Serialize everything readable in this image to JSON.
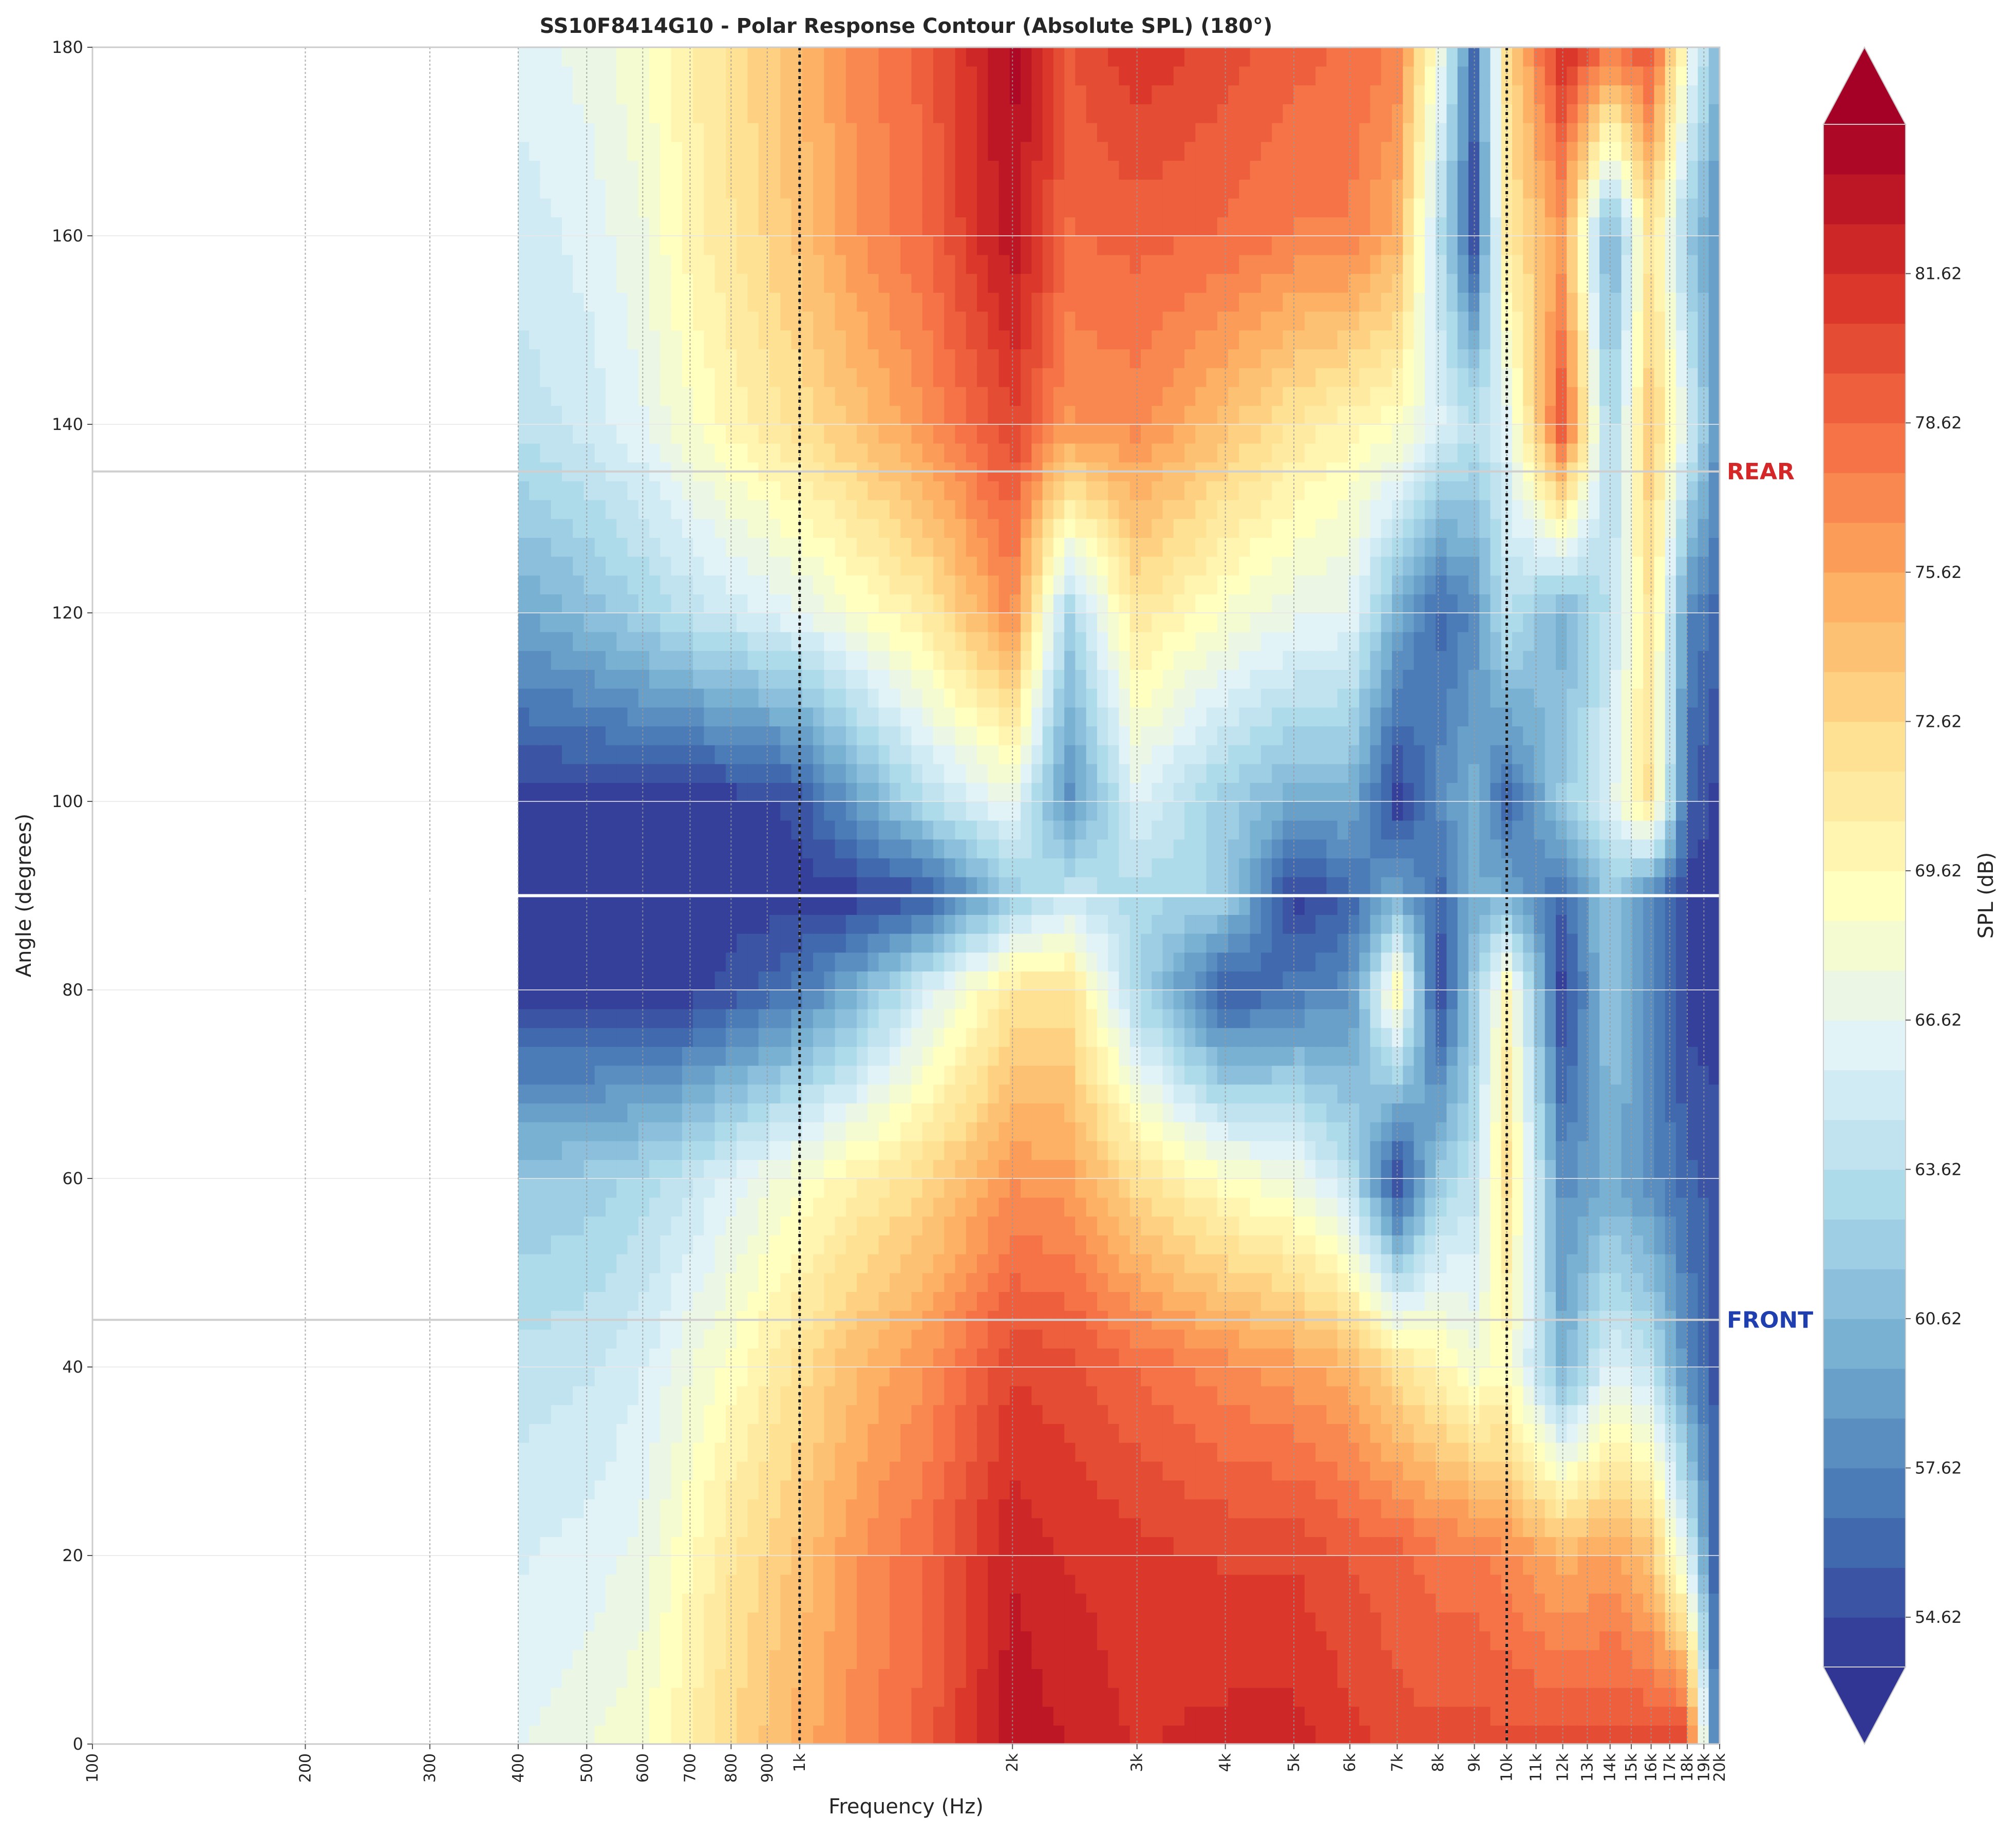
{
  "chart_data": {
    "type": "heatmap",
    "title": "SS10F8414G10 - Polar Response Contour (Absolute SPL) (180°)",
    "xlabel": "Frequency (Hz)",
    "ylabel": "Angle (degrees)",
    "x_scale": "log",
    "xlim": [
      100,
      20000
    ],
    "ylim": [
      0,
      180
    ],
    "x_ticks": [
      {
        "value": 100,
        "label": "100"
      },
      {
        "value": 200,
        "label": "200"
      },
      {
        "value": 300,
        "label": "300"
      },
      {
        "value": 400,
        "label": "400"
      },
      {
        "value": 500,
        "label": "500"
      },
      {
        "value": 600,
        "label": "600"
      },
      {
        "value": 700,
        "label": "700"
      },
      {
        "value": 800,
        "label": "800"
      },
      {
        "value": 900,
        "label": "900"
      },
      {
        "value": 1000,
        "label": "1k"
      },
      {
        "value": 2000,
        "label": "2k"
      },
      {
        "value": 3000,
        "label": "3k"
      },
      {
        "value": 4000,
        "label": "4k"
      },
      {
        "value": 5000,
        "label": "5k"
      },
      {
        "value": 6000,
        "label": "6k"
      },
      {
        "value": 7000,
        "label": "7k"
      },
      {
        "value": 8000,
        "label": "8k"
      },
      {
        "value": 9000,
        "label": "9k"
      },
      {
        "value": 10000,
        "label": "10k"
      },
      {
        "value": 11000,
        "label": "11k"
      },
      {
        "value": 12000,
        "label": "12k"
      },
      {
        "value": 13000,
        "label": "13k"
      },
      {
        "value": 14000,
        "label": "14k"
      },
      {
        "value": 15000,
        "label": "15k"
      },
      {
        "value": 16000,
        "label": "16k"
      },
      {
        "value": 17000,
        "label": "17k"
      },
      {
        "value": 18000,
        "label": "18k"
      },
      {
        "value": 19000,
        "label": "19k"
      },
      {
        "value": 20000,
        "label": "20k"
      }
    ],
    "y_ticks": [
      {
        "value": 0,
        "label": "0"
      },
      {
        "value": 20,
        "label": "20"
      },
      {
        "value": 40,
        "label": "40"
      },
      {
        "value": 60,
        "label": "60"
      },
      {
        "value": 80,
        "label": "80"
      },
      {
        "value": 100,
        "label": "100"
      },
      {
        "value": 120,
        "label": "120"
      },
      {
        "value": 140,
        "label": "140"
      },
      {
        "value": 160,
        "label": "160"
      },
      {
        "value": 180,
        "label": "180"
      }
    ],
    "data_x_range": [
      400,
      20000
    ],
    "crossover_lines_hz": [
      1000,
      10000
    ],
    "reference_lines": [
      {
        "angle": 135,
        "label": "REAR",
        "color": "#d62728"
      },
      {
        "angle": 90,
        "label": "",
        "color": "#ffffff"
      },
      {
        "angle": 45,
        "label": "FRONT",
        "color": "#1f3fb0"
      }
    ],
    "colorbar": {
      "label": "SPL (dB)",
      "min": 53.62,
      "max": 84.62,
      "ticks": [
        54.62,
        57.62,
        60.62,
        63.62,
        66.62,
        69.62,
        72.62,
        75.62,
        78.62,
        81.62
      ],
      "tick_labels": [
        "54.62",
        "57.62",
        "60.62",
        "63.62",
        "66.62",
        "69.62",
        "72.62",
        "75.62",
        "78.62",
        "81.62"
      ],
      "colormap": "RdYlBu_r",
      "extend": "both"
    },
    "spl_samples": {
      "freqs": [
        400,
        500,
        600,
        700,
        800,
        1000,
        1200,
        1500,
        2000,
        2400,
        3000,
        4000,
        5000,
        6000,
        7000,
        8000,
        9000,
        10000,
        12000,
        14000,
        16000,
        18000,
        20000
      ],
      "angles": [
        0,
        20,
        40,
        60,
        80,
        90,
        100,
        120,
        140,
        160,
        180
      ],
      "values": [
        [
          66.5,
          67.5,
          68.5,
          70.5,
          72.5,
          75.0,
          77.0,
          79.0,
          83.5,
          82.5,
          81.5,
          82.0,
          82.0,
          81.0,
          80.0,
          80.0,
          80.0,
          80.0,
          80.0,
          80.0,
          80.0,
          81.0,
          54.0
        ],
        [
          65.5,
          66.0,
          67.0,
          69.5,
          71.5,
          74.0,
          76.5,
          78.5,
          82.5,
          81.5,
          81.0,
          80.5,
          80.5,
          79.5,
          79.0,
          78.0,
          78.0,
          77.0,
          75.0,
          76.0,
          74.0,
          66.0,
          54.0
        ],
        [
          64.0,
          64.5,
          65.5,
          67.5,
          69.0,
          72.0,
          74.5,
          76.5,
          80.5,
          80.0,
          78.5,
          77.0,
          76.0,
          75.0,
          72.0,
          70.0,
          68.0,
          69.0,
          60.0,
          66.0,
          64.0,
          58.0,
          55.0
        ],
        [
          61.5,
          62.0,
          63.0,
          64.5,
          66.0,
          68.5,
          70.5,
          72.5,
          76.5,
          76.0,
          72.0,
          69.0,
          67.5,
          64.0,
          54.0,
          62.0,
          64.0,
          72.0,
          58.0,
          60.0,
          58.0,
          56.0,
          55.0
        ],
        [
          54.0,
          54.0,
          54.0,
          54.0,
          55.0,
          57.0,
          60.0,
          65.5,
          71.5,
          72.0,
          63.0,
          55.0,
          57.0,
          58.0,
          70.0,
          54.0,
          62.0,
          70.0,
          54.0,
          62.0,
          58.0,
          54.0,
          54.0
        ],
        [
          54.0,
          54.0,
          54.0,
          54.0,
          54.0,
          54.0,
          54.0,
          55.0,
          62.0,
          64.5,
          63.0,
          62.5,
          54.0,
          56.0,
          60.0,
          56.0,
          60.0,
          60.0,
          56.0,
          62.0,
          58.0,
          54.0,
          54.0
        ],
        [
          54.0,
          54.0,
          54.0,
          54.0,
          54.0,
          55.0,
          59.0,
          63.5,
          67.0,
          58.0,
          66.0,
          62.0,
          60.0,
          60.0,
          54.0,
          58.0,
          60.0,
          56.0,
          62.0,
          66.0,
          72.0,
          56.0,
          54.0
        ],
        [
          59.5,
          61.0,
          62.5,
          64.0,
          65.0,
          66.5,
          68.5,
          71.0,
          77.0,
          62.5,
          71.5,
          68.5,
          67.0,
          66.5,
          60.0,
          56.0,
          58.0,
          64.0,
          60.0,
          64.0,
          72.0,
          58.0,
          56.0
        ],
        [
          64.0,
          65.0,
          66.5,
          68.5,
          70.0,
          72.0,
          74.0,
          76.5,
          80.5,
          76.5,
          77.0,
          74.0,
          71.5,
          70.0,
          69.0,
          66.0,
          64.0,
          66.0,
          80.0,
          62.0,
          74.0,
          66.0,
          58.0
        ],
        [
          65.0,
          66.0,
          67.5,
          70.0,
          71.5,
          74.0,
          76.5,
          78.5,
          83.5,
          78.5,
          79.0,
          78.5,
          77.5,
          77.5,
          75.0,
          64.0,
          55.0,
          71.0,
          76.0,
          59.0,
          72.0,
          62.0,
          58.0
        ],
        [
          66.0,
          67.0,
          68.5,
          70.5,
          72.0,
          74.5,
          77.0,
          79.0,
          84.0,
          79.5,
          81.5,
          80.0,
          79.0,
          78.5,
          77.5,
          68.0,
          56.0,
          72.0,
          82.0,
          78.0,
          80.0,
          68.0,
          60.0
        ]
      ]
    }
  }
}
